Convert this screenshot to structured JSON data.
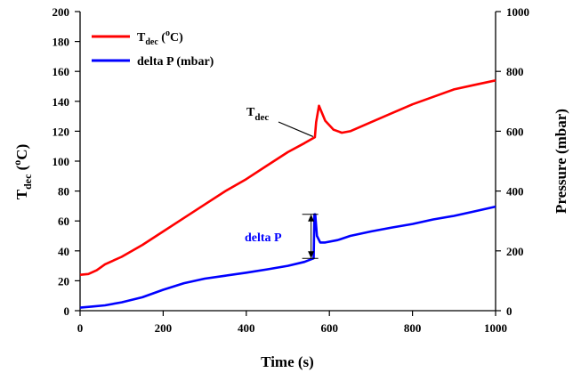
{
  "chart_data": {
    "type": "line",
    "xlabel": "Time (s)",
    "ylabel_left": {
      "main": "T",
      "sub": "dec",
      "open": " (",
      "sup": "o",
      "close": "C)"
    },
    "ylabel_right": "Pressure (mbar)",
    "xlim": [
      0,
      1000
    ],
    "ylim_left": [
      0,
      200
    ],
    "ylim_right": [
      0,
      1000
    ],
    "x_ticks": [
      0,
      200,
      400,
      600,
      800,
      1000
    ],
    "y_left_ticks": [
      0,
      20,
      40,
      60,
      80,
      100,
      120,
      140,
      160,
      180,
      200
    ],
    "y_right_ticks": [
      0,
      200,
      400,
      600,
      800,
      1000
    ],
    "grid": false,
    "legend_position": "top-left",
    "series": [
      {
        "name": "T_dec (oC)",
        "label": {
          "main": "T",
          "sub": "dec",
          "rest": " (",
          "sup": "o",
          "end": "C)"
        },
        "axis": "left",
        "color": "#ff0000",
        "x": [
          0,
          20,
          40,
          60,
          100,
          150,
          200,
          250,
          300,
          350,
          400,
          450,
          500,
          540,
          565,
          568,
          575,
          590,
          610,
          630,
          650,
          700,
          750,
          800,
          850,
          900,
          950,
          1000
        ],
        "y": [
          24,
          24.5,
          27,
          31,
          36,
          44,
          53,
          62,
          71,
          80,
          88,
          97,
          106,
          112,
          116,
          126,
          137,
          127,
          121,
          119,
          120,
          126,
          132,
          138,
          143,
          148,
          151,
          154
        ]
      },
      {
        "name": "delta P (mbar)",
        "axis": "right",
        "color": "#0000ff",
        "x": [
          0,
          30,
          60,
          100,
          150,
          200,
          250,
          300,
          350,
          400,
          450,
          500,
          540,
          562,
          564,
          566,
          570,
          578,
          590,
          620,
          650,
          700,
          750,
          800,
          850,
          900,
          950,
          1000
        ],
        "y": [
          10,
          14,
          18,
          28,
          45,
          70,
          92,
          107,
          117,
          127,
          138,
          150,
          163,
          175,
          322,
          322,
          250,
          228,
          228,
          236,
          250,
          265,
          278,
          290,
          305,
          317,
          332,
          348
        ]
      }
    ],
    "annotations": {
      "tdec": {
        "main": "T",
        "sub": "dec",
        "at": {
          "x": 565,
          "y_left": 117
        }
      },
      "delta_p": {
        "text": "delta P",
        "x": 556,
        "from_right": 175,
        "to_right": 322
      }
    }
  }
}
